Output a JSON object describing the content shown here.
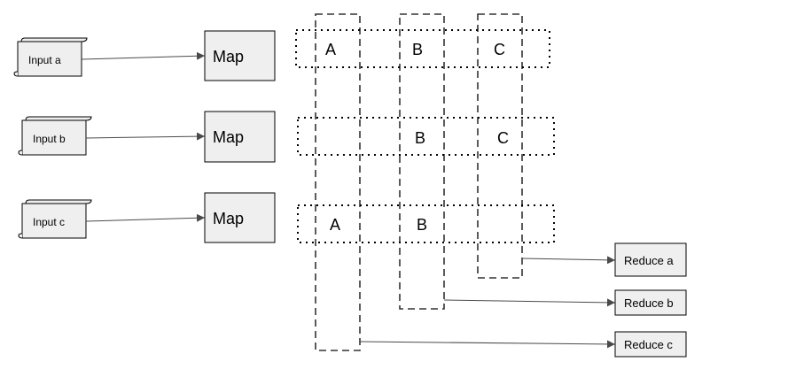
{
  "inputs": [
    {
      "label": "Input a"
    },
    {
      "label": "Input b"
    },
    {
      "label": "Input c"
    }
  ],
  "maps": [
    {
      "label": "Map"
    },
    {
      "label": "Map"
    },
    {
      "label": "Map"
    }
  ],
  "rows": [
    {
      "keys": [
        "A",
        "B",
        "C"
      ]
    },
    {
      "keys": [
        "B",
        "C"
      ]
    },
    {
      "keys": [
        "A",
        "B"
      ]
    }
  ],
  "reducers": [
    {
      "label": "Reduce a"
    },
    {
      "label": "Reduce b"
    },
    {
      "label": "Reduce c"
    }
  ],
  "colors": {
    "node_fill": "#efefef",
    "edge": "#4a4a4a"
  }
}
